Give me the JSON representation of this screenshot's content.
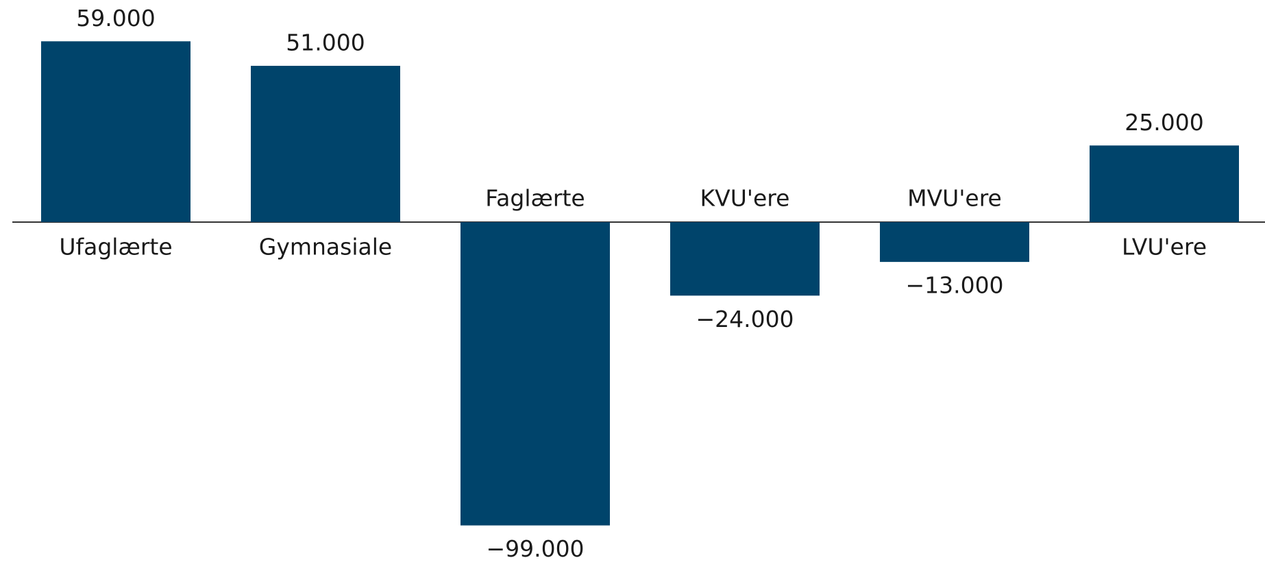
{
  "chart_data": {
    "type": "bar",
    "categories": [
      "Ufaglærte",
      "Gymnasiale",
      "Faglærte",
      "KVU'ere",
      "MVU'ere",
      "LVU'ere"
    ],
    "values": [
      59000,
      51000,
      -99000,
      -24000,
      -13000,
      25000
    ],
    "value_labels": [
      "59.000",
      "51.000",
      "−99.000",
      "−24.000",
      "−13.000",
      "25.000"
    ],
    "color": "#00446b"
  }
}
